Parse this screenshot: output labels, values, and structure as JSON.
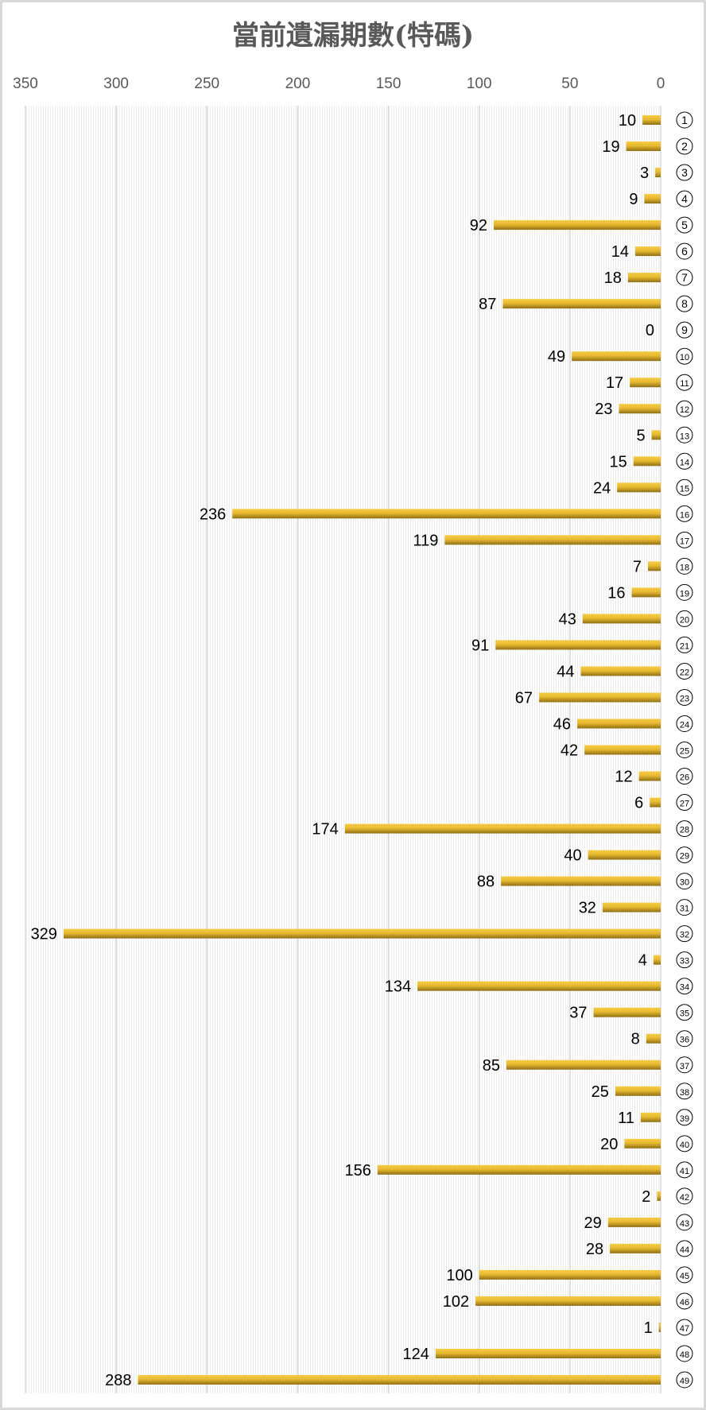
{
  "chart_data": {
    "type": "bar",
    "orientation": "horizontal",
    "x_axis_reversed": true,
    "title": "當前遺漏期數(特碼)",
    "xlabel": "",
    "ylabel": "",
    "xlim": [
      0,
      350
    ],
    "x_ticks": [
      "350",
      "300",
      "250",
      "200",
      "150",
      "100",
      "50",
      "0"
    ],
    "grid": true,
    "legend": "none",
    "category_label_style": "circled",
    "categories": [
      1,
      2,
      3,
      4,
      5,
      6,
      7,
      8,
      9,
      10,
      11,
      12,
      13,
      14,
      15,
      16,
      17,
      18,
      19,
      20,
      21,
      22,
      23,
      24,
      25,
      26,
      27,
      28,
      29,
      30,
      31,
      32,
      33,
      34,
      35,
      36,
      37,
      38,
      39,
      40,
      41,
      42,
      43,
      44,
      45,
      46,
      47,
      48,
      49
    ],
    "values": [
      10,
      19,
      3,
      9,
      92,
      14,
      18,
      87,
      0,
      49,
      17,
      23,
      5,
      15,
      24,
      236,
      119,
      7,
      16,
      43,
      91,
      44,
      67,
      46,
      42,
      12,
      6,
      174,
      40,
      88,
      32,
      329,
      4,
      134,
      37,
      8,
      85,
      25,
      11,
      20,
      156,
      2,
      29,
      28,
      100,
      102,
      1,
      124,
      288
    ],
    "colors": {
      "bar_light": "#f5cc45",
      "bar_dark": "#8f6f14",
      "grid": "#d9d9d9",
      "text": "#595959"
    }
  }
}
